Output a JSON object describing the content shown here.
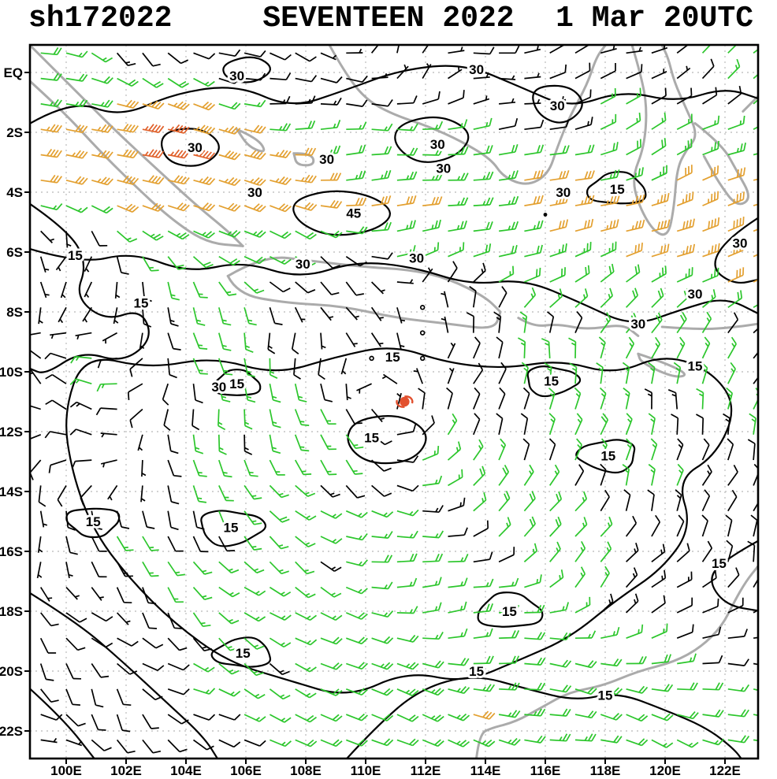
{
  "title": {
    "storm_id": "sh172022",
    "storm_name": "SEVENTEEN 2022",
    "valid_time": "1 Mar 20UTC"
  },
  "map": {
    "lat_labels": [
      {
        "text": "EQ",
        "lat": 0
      },
      {
        "text": "2S",
        "lat": -2
      },
      {
        "text": "4S",
        "lat": -4
      },
      {
        "text": "6S",
        "lat": -6
      },
      {
        "text": "8S",
        "lat": -8
      },
      {
        "text": "10S",
        "lat": -10
      },
      {
        "text": "12S",
        "lat": -12
      },
      {
        "text": "14S",
        "lat": -14
      },
      {
        "text": "16S",
        "lat": -16
      },
      {
        "text": "18S",
        "lat": -18
      },
      {
        "text": "20S",
        "lat": -20
      },
      {
        "text": "22S",
        "lat": -22
      }
    ],
    "lon_labels": [
      {
        "text": "100E",
        "lon": 100
      },
      {
        "text": "102E",
        "lon": 102
      },
      {
        "text": "104E",
        "lon": 104
      },
      {
        "text": "106E",
        "lon": 106
      },
      {
        "text": "108E",
        "lon": 108
      },
      {
        "text": "110E",
        "lon": 110
      },
      {
        "text": "112E",
        "lon": 112
      },
      {
        "text": "114E",
        "lon": 114
      },
      {
        "text": "116E",
        "lon": 116
      },
      {
        "text": "118E",
        "lon": 118
      },
      {
        "text": "120E",
        "lon": 120
      },
      {
        "text": "122E",
        "lon": 122
      }
    ]
  },
  "colors": {
    "calm": "#000000",
    "light": "#2cc62c",
    "strong": "#e3a030",
    "severe": "#e0602a",
    "coast": "#ababab",
    "grid": "#c4c4c4",
    "contour": "#000000",
    "frame": "#000000"
  },
  "storm": {
    "lon": 111.3,
    "lat": -11.0,
    "color": "#e2502e"
  },
  "islets": [
    {
      "lon": 116.0,
      "lat": -4.75
    }
  ],
  "contour_labels": [
    {
      "t": "30",
      "lon": 105.7,
      "lat": -0.1
    },
    {
      "t": "30",
      "lon": 113.7,
      "lat": 0.1
    },
    {
      "t": "30",
      "lon": 116.4,
      "lat": -1.1
    },
    {
      "t": "30",
      "lon": 104.3,
      "lat": -2.5
    },
    {
      "t": "30",
      "lon": 112.4,
      "lat": -2.4
    },
    {
      "t": "30",
      "lon": 108.7,
      "lat": -2.9
    },
    {
      "t": "30",
      "lon": 112.6,
      "lat": -3.2
    },
    {
      "t": "30",
      "lon": 106.3,
      "lat": -4.0
    },
    {
      "t": "30",
      "lon": 116.6,
      "lat": -4.0
    },
    {
      "t": "45",
      "lon": 109.6,
      "lat": -4.7
    },
    {
      "t": "30",
      "lon": 122.5,
      "lat": -5.7
    },
    {
      "t": "30",
      "lon": 107.9,
      "lat": -6.4
    },
    {
      "t": "30",
      "lon": 111.7,
      "lat": -6.2
    },
    {
      "t": "30",
      "lon": 121.0,
      "lat": -7.4
    },
    {
      "t": "30",
      "lon": 119.1,
      "lat": -8.4
    },
    {
      "t": "30",
      "lon": 105.1,
      "lat": -10.5
    },
    {
      "t": "15",
      "lon": 118.4,
      "lat": -3.9,
      "blob": [
        1.0,
        0.55
      ]
    },
    {
      "t": "15",
      "lon": 100.3,
      "lat": -6.1
    },
    {
      "t": "15",
      "lon": 102.5,
      "lat": -7.7
    },
    {
      "t": "15",
      "lon": 110.9,
      "lat": -9.5
    },
    {
      "t": "15",
      "lon": 116.2,
      "lat": -10.3,
      "blob": [
        0.9,
        0.5
      ]
    },
    {
      "t": "15",
      "lon": 121.0,
      "lat": -9.8
    },
    {
      "t": "15",
      "lon": 105.7,
      "lat": -10.4,
      "blob": [
        0.8,
        0.45
      ]
    },
    {
      "t": "15",
      "lon": 110.2,
      "lat": -12.2
    },
    {
      "t": "15",
      "lon": 118.1,
      "lat": -12.8,
      "blob": [
        1.0,
        0.55
      ]
    },
    {
      "t": "15",
      "lon": 100.9,
      "lat": -15.0,
      "blob": [
        0.9,
        0.5
      ]
    },
    {
      "t": "15",
      "lon": 105.5,
      "lat": -15.2,
      "blob": [
        1.1,
        0.6
      ]
    },
    {
      "t": "15",
      "lon": 121.8,
      "lat": -16.4
    },
    {
      "t": "15",
      "lon": 114.8,
      "lat": -18.0,
      "blob": [
        1.1,
        0.6
      ]
    },
    {
      "t": "15",
      "lon": 105.9,
      "lat": -19.4,
      "blob": [
        1.0,
        0.5
      ]
    },
    {
      "t": "15",
      "lon": 113.7,
      "lat": -20.0
    },
    {
      "t": "15",
      "lon": 118.0,
      "lat": -20.8
    }
  ],
  "contours": [
    {
      "level": 30,
      "closed": false,
      "pts": [
        [
          98.8,
          -1.7
        ],
        [
          100.2,
          -0.9
        ],
        [
          101.8,
          -1.5
        ],
        [
          103.6,
          -0.7
        ],
        [
          105.7,
          -0.4
        ],
        [
          107.5,
          -1.2
        ],
        [
          109.3,
          -0.6
        ],
        [
          111.2,
          0.1
        ],
        [
          113.3,
          0.3
        ],
        [
          115.2,
          -0.5
        ],
        [
          116.8,
          -1.2
        ],
        [
          118.6,
          -0.6
        ],
        [
          120.4,
          -1.0
        ],
        [
          122.0,
          -0.5
        ],
        [
          123.2,
          -0.9
        ]
      ]
    },
    {
      "level": 30,
      "closed": false,
      "pts": [
        [
          98.8,
          -5.9
        ],
        [
          100.5,
          -6.4
        ],
        [
          102.2,
          -6.0
        ],
        [
          104.1,
          -6.7
        ],
        [
          105.9,
          -6.3
        ],
        [
          107.8,
          -6.9
        ],
        [
          109.7,
          -6.3
        ],
        [
          111.6,
          -6.5
        ],
        [
          113.5,
          -7.1
        ],
        [
          115.3,
          -6.9
        ],
        [
          117.2,
          -7.7
        ],
        [
          118.9,
          -8.5
        ],
        [
          120.6,
          -7.9
        ],
        [
          122.0,
          -7.5
        ],
        [
          123.2,
          -8.1
        ]
      ]
    },
    {
      "level": 45,
      "closed": true,
      "pts": [
        [
          107.5,
          -4.3
        ],
        [
          108.8,
          -3.9
        ],
        [
          110.2,
          -4.1
        ],
        [
          111.0,
          -4.7
        ],
        [
          110.3,
          -5.3
        ],
        [
          108.8,
          -5.5
        ],
        [
          107.7,
          -5.0
        ]
      ]
    },
    {
      "level": 30,
      "closed": true,
      "pts": [
        [
          111.1,
          -1.7
        ],
        [
          112.5,
          -1.4
        ],
        [
          113.6,
          -2.0
        ],
        [
          113.1,
          -2.8
        ],
        [
          111.8,
          -3.1
        ],
        [
          110.9,
          -2.4
        ]
      ]
    },
    {
      "level": 30,
      "closed": true,
      "pts": [
        [
          103.1,
          -2.0
        ],
        [
          104.5,
          -1.8
        ],
        [
          105.3,
          -2.5
        ],
        [
          104.5,
          -3.2
        ],
        [
          103.3,
          -3.0
        ]
      ]
    },
    {
      "level": 30,
      "closed": true,
      "pts": [
        [
          115.5,
          -0.5
        ],
        [
          116.8,
          -0.4
        ],
        [
          117.4,
          -1.1
        ],
        [
          116.6,
          -1.8
        ],
        [
          115.7,
          -1.4
        ]
      ]
    },
    {
      "level": 30,
      "closed": false,
      "pts": [
        [
          123.2,
          -4.8
        ],
        [
          122.1,
          -5.5
        ],
        [
          121.5,
          -6.5
        ],
        [
          122.3,
          -7.1
        ],
        [
          123.2,
          -6.9
        ]
      ]
    },
    {
      "level": 30,
      "closed": true,
      "pts": [
        [
          105.2,
          0.3
        ],
        [
          106.3,
          0.6
        ],
        [
          107.0,
          0.1
        ],
        [
          106.2,
          -0.4
        ],
        [
          105.3,
          -0.2
        ]
      ]
    },
    {
      "level": 15,
      "closed": true,
      "pts": [
        [
          100.6,
          -9.4
        ],
        [
          102.8,
          -9.9
        ],
        [
          104.9,
          -9.5
        ],
        [
          107.0,
          -10.1
        ],
        [
          109.0,
          -9.5
        ],
        [
          110.9,
          -9.1
        ],
        [
          112.7,
          -9.7
        ],
        [
          114.6,
          -9.9
        ],
        [
          116.5,
          -9.6
        ],
        [
          118.3,
          -10.1
        ],
        [
          120.0,
          -9.4
        ],
        [
          121.6,
          -10.0
        ],
        [
          122.4,
          -11.2
        ],
        [
          121.7,
          -12.8
        ],
        [
          120.4,
          -13.6
        ],
        [
          120.9,
          -15.2
        ],
        [
          119.9,
          -16.6
        ],
        [
          118.4,
          -17.6
        ],
        [
          116.8,
          -18.9
        ],
        [
          115.2,
          -19.6
        ],
        [
          113.3,
          -20.4
        ],
        [
          111.4,
          -20.0
        ],
        [
          109.4,
          -20.9
        ],
        [
          107.4,
          -20.3
        ],
        [
          105.4,
          -19.7
        ],
        [
          103.6,
          -18.4
        ],
        [
          102.1,
          -16.9
        ],
        [
          100.9,
          -15.3
        ],
        [
          100.2,
          -13.4
        ],
        [
          99.9,
          -11.4
        ]
      ]
    },
    {
      "level": 15,
      "closed": false,
      "pts": [
        [
          98.8,
          -4.4
        ],
        [
          100.1,
          -5.3
        ],
        [
          100.7,
          -6.4
        ],
        [
          100.3,
          -7.5
        ],
        [
          101.3,
          -8.3
        ],
        [
          102.5,
          -7.9
        ],
        [
          102.9,
          -8.9
        ],
        [
          101.9,
          -9.7
        ],
        [
          100.5,
          -9.3
        ],
        [
          99.3,
          -10.1
        ],
        [
          98.8,
          -9.9
        ]
      ]
    },
    {
      "level": 15,
      "closed": true,
      "pts": [
        [
          109.6,
          -11.6
        ],
        [
          111.2,
          -11.4
        ],
        [
          112.2,
          -12.1
        ],
        [
          111.6,
          -13.0
        ],
        [
          110.1,
          -13.1
        ],
        [
          109.3,
          -12.4
        ]
      ]
    },
    {
      "level": 15,
      "closed": false,
      "pts": [
        [
          98.8,
          -17.4
        ],
        [
          100.4,
          -18.4
        ],
        [
          101.9,
          -19.7
        ],
        [
          103.3,
          -21.0
        ],
        [
          104.6,
          -22.2
        ],
        [
          105.1,
          -23.0
        ]
      ]
    },
    {
      "level": 15,
      "closed": false,
      "pts": [
        [
          98.8,
          -20.6
        ],
        [
          99.9,
          -21.6
        ],
        [
          101.0,
          -23.0
        ]
      ]
    },
    {
      "level": 15,
      "closed": false,
      "pts": [
        [
          109.3,
          -23.0
        ],
        [
          110.3,
          -21.9
        ],
        [
          111.8,
          -20.6
        ],
        [
          113.6,
          -20.1
        ],
        [
          115.4,
          -20.6
        ],
        [
          117.0,
          -21.0
        ],
        [
          118.4,
          -20.7
        ],
        [
          120.0,
          -21.3
        ],
        [
          121.4,
          -21.9
        ],
        [
          122.3,
          -22.6
        ],
        [
          122.6,
          -23.0
        ]
      ]
    },
    {
      "level": 15,
      "closed": false,
      "pts": [
        [
          123.2,
          -15.6
        ],
        [
          122.1,
          -16.2
        ],
        [
          121.4,
          -16.9
        ],
        [
          122.0,
          -17.8
        ],
        [
          123.2,
          -18.0
        ]
      ]
    }
  ],
  "coastlines": [
    [
      [
        98.8,
        0.9
      ],
      [
        99.6,
        0.1
      ],
      [
        100.6,
        -0.9
      ],
      [
        101.7,
        -2.0
      ],
      [
        103.0,
        -3.2
      ],
      [
        104.3,
        -4.4
      ],
      [
        105.4,
        -5.3
      ],
      [
        105.9,
        -5.8
      ]
    ],
    [
      [
        98.8,
        -0.3
      ],
      [
        99.9,
        -1.3
      ],
      [
        101.0,
        -2.5
      ],
      [
        102.2,
        -3.7
      ],
      [
        103.5,
        -4.9
      ],
      [
        104.7,
        -5.7
      ],
      [
        105.9,
        -5.8
      ]
    ],
    [
      [
        105.4,
        -6.8
      ],
      [
        106.6,
        -6.1
      ],
      [
        108.2,
        -6.3
      ],
      [
        110.0,
        -6.5
      ],
      [
        111.6,
        -6.6
      ],
      [
        112.8,
        -6.9
      ],
      [
        114.0,
        -7.5
      ],
      [
        114.5,
        -8.0
      ]
    ],
    [
      [
        105.4,
        -6.8
      ],
      [
        105.7,
        -7.4
      ],
      [
        107.3,
        -7.7
      ],
      [
        109.2,
        -7.8
      ],
      [
        111.0,
        -8.2
      ],
      [
        112.8,
        -8.4
      ],
      [
        114.3,
        -8.6
      ],
      [
        114.5,
        -8.0
      ]
    ],
    [
      [
        115.1,
        -8.2
      ],
      [
        115.6,
        -8.5
      ],
      [
        116.4,
        -8.4
      ],
      [
        117.4,
        -8.6
      ],
      [
        118.6,
        -8.4
      ],
      [
        119.1,
        -8.8
      ]
    ],
    [
      [
        119.9,
        -8.5
      ],
      [
        121.2,
        -8.6
      ],
      [
        122.4,
        -8.5
      ],
      [
        123.1,
        -8.4
      ]
    ],
    [
      [
        119.1,
        -9.4
      ],
      [
        120.0,
        -9.7
      ],
      [
        120.8,
        -10.1
      ],
      [
        120.3,
        -10.2
      ],
      [
        119.2,
        -9.7
      ],
      [
        119.1,
        -9.4
      ]
    ],
    [
      [
        108.8,
        0.9
      ],
      [
        109.3,
        0.0
      ],
      [
        110.0,
        -0.9
      ],
      [
        110.9,
        -1.4
      ],
      [
        112.1,
        -1.8
      ],
      [
        113.2,
        -2.3
      ],
      [
        114.2,
        -2.9
      ],
      [
        114.6,
        -3.5
      ],
      [
        115.4,
        -3.8
      ],
      [
        116.1,
        -3.4
      ],
      [
        116.4,
        -2.5
      ],
      [
        116.8,
        -1.5
      ],
      [
        117.4,
        -0.4
      ],
      [
        117.7,
        0.5
      ],
      [
        118.0,
        0.9
      ]
    ],
    [
      [
        118.9,
        0.9
      ],
      [
        119.2,
        -0.1
      ],
      [
        119.4,
        -1.2
      ],
      [
        119.3,
        -2.5
      ],
      [
        118.9,
        -3.5
      ],
      [
        119.1,
        -4.4
      ],
      [
        119.6,
        -5.3
      ],
      [
        120.1,
        -5.5
      ],
      [
        120.3,
        -4.5
      ],
      [
        120.4,
        -3.2
      ],
      [
        120.7,
        -2.6
      ],
      [
        121.1,
        -2.1
      ],
      [
        120.7,
        -1.2
      ],
      [
        120.3,
        -0.3
      ],
      [
        120.1,
        0.5
      ],
      [
        119.9,
        0.9
      ]
    ],
    [
      [
        121.0,
        -1.7
      ],
      [
        121.9,
        -2.4
      ],
      [
        122.4,
        -3.3
      ],
      [
        122.9,
        -4.2
      ],
      [
        122.4,
        -4.5
      ],
      [
        121.8,
        -3.7
      ],
      [
        121.3,
        -2.8
      ]
    ],
    [
      [
        122.6,
        -1.3
      ],
      [
        123.1,
        -0.8
      ]
    ],
    [
      [
        105.7,
        -1.9
      ],
      [
        106.4,
        -2.2
      ],
      [
        106.7,
        -2.7
      ],
      [
        106.1,
        -2.5
      ],
      [
        105.7,
        -1.9
      ]
    ],
    [
      [
        107.6,
        -2.7
      ],
      [
        108.2,
        -2.7
      ],
      [
        108.3,
        -3.1
      ],
      [
        107.7,
        -3.1
      ],
      [
        107.6,
        -2.7
      ]
    ],
    [
      [
        113.7,
        -22.9
      ],
      [
        113.8,
        -22.1
      ],
      [
        114.2,
        -21.9
      ],
      [
        115.0,
        -21.7
      ],
      [
        115.9,
        -21.2
      ],
      [
        116.8,
        -20.7
      ],
      [
        117.9,
        -20.5
      ],
      [
        119.1,
        -20.0
      ],
      [
        120.3,
        -19.7
      ],
      [
        121.2,
        -19.2
      ],
      [
        121.9,
        -18.5
      ],
      [
        122.3,
        -17.7
      ],
      [
        122.7,
        -17.0
      ],
      [
        123.1,
        -16.5
      ]
    ]
  ],
  "wind_model": {
    "grid_step": 0.85,
    "trade_band": {
      "amp": 28,
      "center0": -3.0,
      "slope": -0.1,
      "width": 2.5
    },
    "north_easterly": {
      "amp": 14,
      "lat0": -9.5,
      "scale": 1.2
    },
    "left_hole": {
      "lon": 100.2,
      "lat": -6.3,
      "wlon": 1.8,
      "wlat": 2.2,
      "depth": 0.8
    },
    "nw_bump": {
      "amp": 18,
      "lon": 103.5,
      "lat": -2.1,
      "wlon": 2.6,
      "wlat": 1.5
    },
    "vortex": {
      "lon": 111.2,
      "lat": -11.1,
      "vmax": 15,
      "rmax": 5.5
    },
    "se_trades": {
      "amp_u": 13,
      "amp_v": 10,
      "lat": -21.5,
      "width": 3.0,
      "lon0": 108.5,
      "lonscale": 2.0
    },
    "left_patch": {
      "amp": 20,
      "lon": 100.8,
      "lat": -10.5,
      "wlon": 2.5,
      "wlat": 3.5
    },
    "noise": {
      "a": 2.5,
      "b": 1.5
    },
    "thresholds": {
      "light": 13,
      "strong": 27.5,
      "severe": 46
    }
  }
}
